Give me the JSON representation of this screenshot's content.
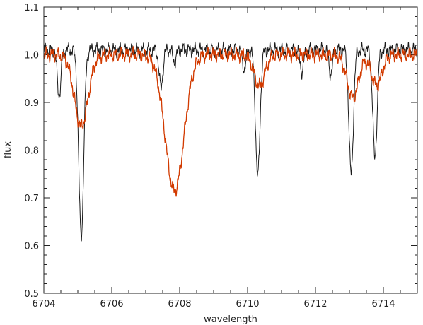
{
  "chart_data": {
    "type": "line",
    "title": "",
    "xlabel": "wavelength",
    "ylabel": "flux",
    "xlim": [
      6704.0,
      6715.0
    ],
    "ylim": [
      0.5,
      1.1
    ],
    "x_ticks": [
      6704,
      6706,
      6708,
      6710,
      6712,
      6714
    ],
    "x_tick_labels": [
      "6704",
      "6706",
      "6708",
      "6710",
      "6712",
      "6714"
    ],
    "y_ticks": [
      0.5,
      0.6,
      0.7,
      0.8,
      0.9,
      1.0,
      1.1
    ],
    "y_tick_labels": [
      "0.5",
      "0.6",
      "0.7",
      "0.8",
      "0.9",
      "1.0",
      "1.1"
    ],
    "grid": false,
    "legend": null,
    "series": [
      {
        "color": "#1a1a1a",
        "continuum": 1.01,
        "lines": [
          {
            "x": 6704.45,
            "y": 0.915
          },
          {
            "x": 6705.1,
            "y": 0.62
          },
          {
            "x": 6707.45,
            "y": 0.93
          },
          {
            "x": 6707.85,
            "y": 0.985
          },
          {
            "x": 6709.9,
            "y": 0.97
          },
          {
            "x": 6710.3,
            "y": 0.745
          },
          {
            "x": 6711.6,
            "y": 0.965
          },
          {
            "x": 6712.45,
            "y": 0.96
          },
          {
            "x": 6713.05,
            "y": 0.75
          },
          {
            "x": 6713.75,
            "y": 0.785
          }
        ]
      },
      {
        "color": "#d23a00",
        "continuum": 1.0,
        "lines": [
          {
            "x": 6705.1,
            "y": 0.85
          },
          {
            "x": 6707.85,
            "y": 0.715
          },
          {
            "x": 6710.35,
            "y": 0.935
          },
          {
            "x": 6713.1,
            "y": 0.91
          },
          {
            "x": 6713.8,
            "y": 0.935
          }
        ]
      }
    ]
  }
}
